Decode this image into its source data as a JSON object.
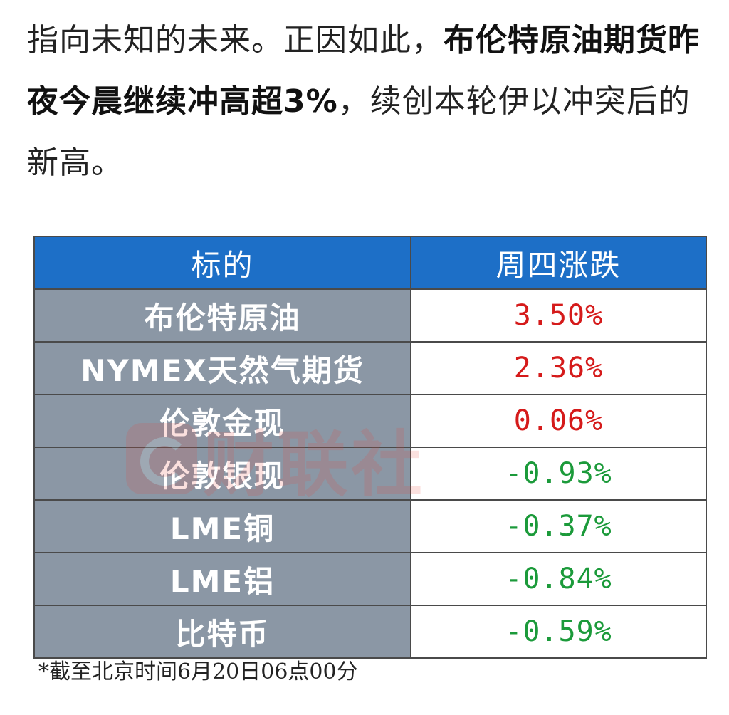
{
  "article": {
    "segments": [
      {
        "text": "指向未知的未来。正因如此，",
        "bold": false
      },
      {
        "text": "布伦特原油期货昨夜今晨继续冲高超3%",
        "bold": true
      },
      {
        "text": "，续创本轮伊以冲突后的新高。",
        "bold": false
      }
    ]
  },
  "table": {
    "headers": [
      "标的",
      "周四涨跌"
    ],
    "rows": [
      {
        "name": "布伦特原油",
        "change": "3.50%",
        "direction": "up"
      },
      {
        "name": "NYMEX天然气期货",
        "change": "2.36%",
        "direction": "up"
      },
      {
        "name": "伦敦金现",
        "change": "0.06%",
        "direction": "up"
      },
      {
        "name": "伦敦银现",
        "change": "-0.93%",
        "direction": "down"
      },
      {
        "name": "LME铜",
        "change": "-0.37%",
        "direction": "down"
      },
      {
        "name": "LME铝",
        "change": "-0.84%",
        "direction": "down"
      },
      {
        "name": "比特币",
        "change": "-0.59%",
        "direction": "down"
      }
    ],
    "colors": {
      "header_bg": "#1d6fc7",
      "name_bg": "#8b97a5",
      "up": "#d51a1a",
      "down": "#1b9a3a"
    }
  },
  "watermark": {
    "text": "财联社",
    "logo_icon": "cls-logo-icon"
  },
  "footnote": "*截至北京时间6月20日06点00分"
}
